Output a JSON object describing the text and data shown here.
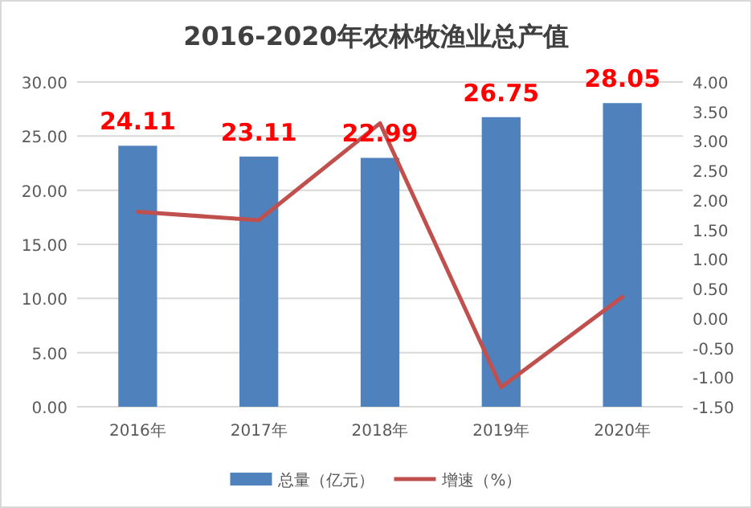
{
  "chart_data": {
    "type": "bar",
    "title": "2016-2020年农林牧渔业总产值",
    "categories": [
      "2016年",
      "2017年",
      "2018年",
      "2019年",
      "2020年"
    ],
    "series": [
      {
        "name": "总量（亿元）",
        "color": "#4f81bd",
        "values": [
          24.11,
          23.11,
          22.99,
          26.75,
          28.05
        ],
        "value_labels": [
          "24.11",
          "23.11",
          "22.99",
          "26.75",
          "28.05"
        ]
      },
      {
        "name": "增速（%）",
        "type": "line",
        "axis": "y2",
        "color": "#c0504d",
        "values": [
          1.8,
          1.66,
          3.3,
          -1.17,
          0.36
        ]
      }
    ],
    "ylim": [
      0,
      30
    ],
    "yticks": [
      {
        "value": 0,
        "label": "0.00"
      },
      {
        "value": 5,
        "label": "5.00"
      },
      {
        "value": 10,
        "label": "10.00"
      },
      {
        "value": 15,
        "label": "15.00"
      },
      {
        "value": 20,
        "label": "20.00"
      },
      {
        "value": 25,
        "label": "25.00"
      },
      {
        "value": 30,
        "label": "30.00"
      }
    ],
    "y2lim": [
      -1.5,
      4
    ],
    "y2ticks": [
      {
        "value": -1.5,
        "label": "-1.50"
      },
      {
        "value": -1,
        "label": "-1.00"
      },
      {
        "value": -0.5,
        "label": "-0.50"
      },
      {
        "value": 0,
        "label": "0.00"
      },
      {
        "value": 0.5,
        "label": "0.50"
      },
      {
        "value": 1,
        "label": "1.00"
      },
      {
        "value": 1.5,
        "label": "1.50"
      },
      {
        "value": 2,
        "label": "2.00"
      },
      {
        "value": 2.5,
        "label": "2.50"
      },
      {
        "value": 3,
        "label": "3.00"
      },
      {
        "value": 3.5,
        "label": "3.50"
      },
      {
        "value": 4,
        "label": "4.00"
      }
    ],
    "grid": "y",
    "legend": "bottom"
  }
}
